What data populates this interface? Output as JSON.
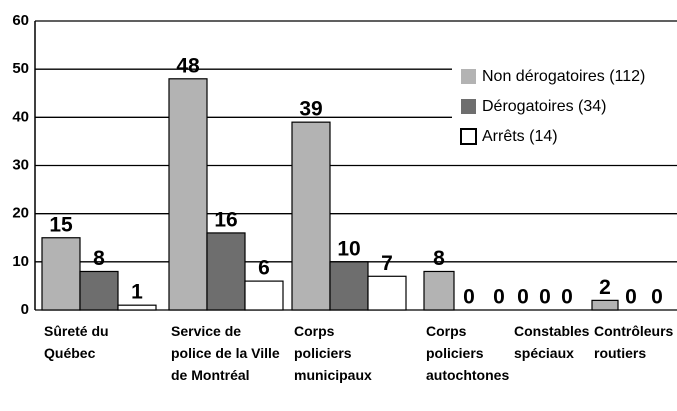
{
  "chart_data": {
    "type": "bar",
    "categories": [
      "Sûreté du Québec",
      "Service de police de la Ville de Montréal",
      "Corps policiers municipaux",
      "Corps policiers autochtones",
      "Constables spéciaux",
      "Contrôleurs routiers"
    ],
    "series": [
      {
        "name": "Non dérogatoires (112)",
        "color": "#b3b3b3",
        "values": [
          15,
          48,
          39,
          8,
          0,
          2
        ]
      },
      {
        "name": "Dérogatoires (34)",
        "color": "#6e6e6e",
        "values": [
          8,
          16,
          10,
          0,
          0,
          0
        ]
      },
      {
        "name": "Arrêts (14)",
        "color": "#ffffff",
        "values": [
          1,
          6,
          7,
          0,
          0,
          0
        ]
      }
    ],
    "ylim": [
      0,
      60
    ],
    "yticks": [
      0,
      10,
      20,
      30,
      40,
      50,
      60
    ],
    "grid": true
  }
}
